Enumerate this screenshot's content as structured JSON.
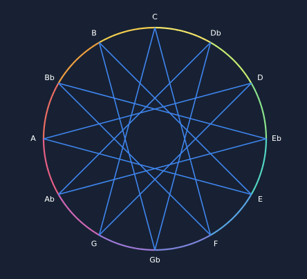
{
  "diagram": {
    "notes": [
      "C",
      "Db",
      "D",
      "Eb",
      "E",
      "F",
      "Gb",
      "G",
      "Ab",
      "A",
      "Bb",
      "B"
    ],
    "connection_step": 5,
    "colors": {
      "background": "#172133",
      "lines": "#3f86f0",
      "labels": "#ffffff",
      "ring_gradient": [
        "#f5e66a",
        "#c9ee73",
        "#8ce48d",
        "#54d6c5",
        "#5aa6e6",
        "#7d86dd",
        "#9e7ad8",
        "#cf68b8",
        "#e95f86",
        "#ef6e64",
        "#f1a040",
        "#f4cf4f"
      ]
    }
  }
}
